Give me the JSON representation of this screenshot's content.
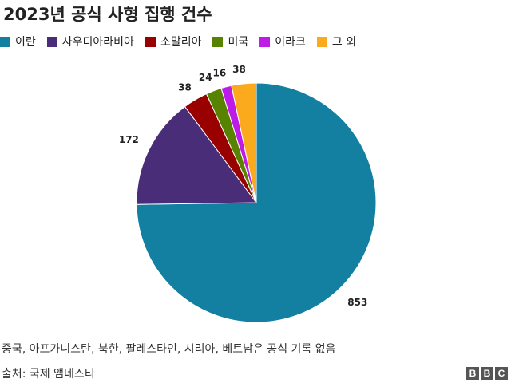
{
  "title": "2023년 공식 사형 집행 건수",
  "footnote": "중국, 아프가니스탄, 북한, 팔레스타인, 시리아, 베트남은 공식 기록 없음",
  "source": "출처: 국제 앰네스티",
  "logo": [
    "B",
    "B",
    "C"
  ],
  "chart_data": {
    "type": "pie",
    "title": "2023년 공식 사형 집행 건수",
    "legend_position": "top",
    "start_angle": "12 o'clock",
    "direction": "clockwise",
    "categories": [
      "이란",
      "사우디아라비아",
      "소말리아",
      "미국",
      "이라크",
      "그 외"
    ],
    "values": [
      853,
      172,
      38,
      24,
      16,
      38
    ],
    "colors": [
      "#1380a1",
      "#4a2d78",
      "#990000",
      "#588300",
      "#bf1be8",
      "#fcaa1d"
    ]
  }
}
